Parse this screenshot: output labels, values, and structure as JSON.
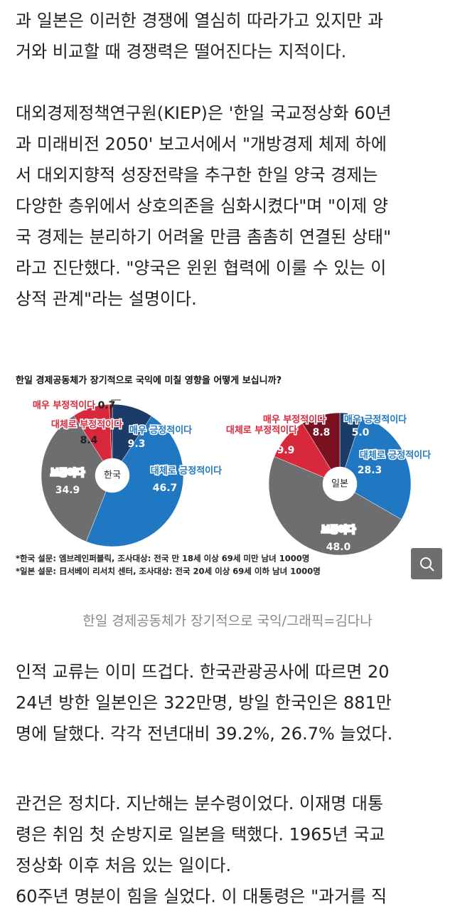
{
  "paragraphs_before": [
    [
      "과 일본은 이러한 경쟁에 열심히 따라가고 있지만 과",
      "거와 비교할 때 경쟁력은 떨어진다는 지적이다."
    ],
    [
      "대외경제정책연구원(KIEP)은 '한일 국교정상화 60년",
      "과 미래비전 2050' 보고서에서 \"개방경제 체제 하에",
      "서 대외지향적 성장전략을 추구한 한일 양국 경제는",
      "다양한 층위에서 상호의존을 심화시켰다\"며 \"이제 양",
      "국 경제는 분리하기 어려울 만큼 촘촘히 연결된 상태\"",
      "라고 진단했다. \"양국은 윈윈 협력에 이룰 수 있는 이",
      "상적 관계\"라는 설명이다."
    ]
  ],
  "figure": {
    "title": "한일 경제공동체가 장기적으로 국익에 미칠 영향을 어떻게 보십니까?",
    "notes": [
      "*한국 설문: 엠브레인퍼블릭, 조사대상: 전국 만 18세 이상 69세 미만 남녀 1000명",
      "*일본 설문: 日서베이 리서치 센터, 조사대상: 전국 20세 이상 69세 이하 남녀 1000명"
    ],
    "caption": "한일 경제공동체가 장기적으로 국익/그래픽=김다나"
  },
  "chart_data": [
    {
      "type": "pie",
      "center_label": "한국",
      "categories": [
        "매우 긍정적이다",
        "대체로 긍정적이다",
        "보통이다",
        "대체로 부정적이다",
        "매우 부정적이다"
      ],
      "values": [
        9.3,
        46.7,
        34.9,
        8.4,
        0.7
      ],
      "colors": [
        "#1b3c66",
        "#1f78c1",
        "#6d6e70",
        "#d8283b",
        "#7a1020"
      ]
    },
    {
      "type": "pie",
      "center_label": "일본",
      "categories": [
        "매우 긍정적이다",
        "대체로 긍정적이다",
        "보통이다",
        "대체로 부정적이다",
        "매우 부정적이다"
      ],
      "values": [
        5.0,
        28.3,
        48.0,
        9.9,
        8.8
      ],
      "value_labels": [
        "5.0",
        "28.3",
        "48.0",
        "9.9",
        "8.8"
      ],
      "colors": [
        "#1b3c66",
        "#1f78c1",
        "#6d6e70",
        "#d8283b",
        "#7a1020"
      ]
    }
  ],
  "paragraphs_after": [
    [
      "인적 교류는 이미 뜨겁다. 한국관광공사에 따르면 20",
      "24년 방한 일본인은 322만명, 방일 한국인은 881만",
      "명에 달했다. 각각 전년대비 39.2%, 26.7% 늘었다."
    ],
    [
      "관건은 정치다. 지난해는 분수령이었다. 이재명 대통",
      "령은 취임 첫 순방지로 일본을 택했다. 1965년 국교",
      "정상화 이후 처음 있는 일이다.",
      "60주년 명분이 힘을 실었다. 이 대통령은 \"과거를 직"
    ]
  ]
}
